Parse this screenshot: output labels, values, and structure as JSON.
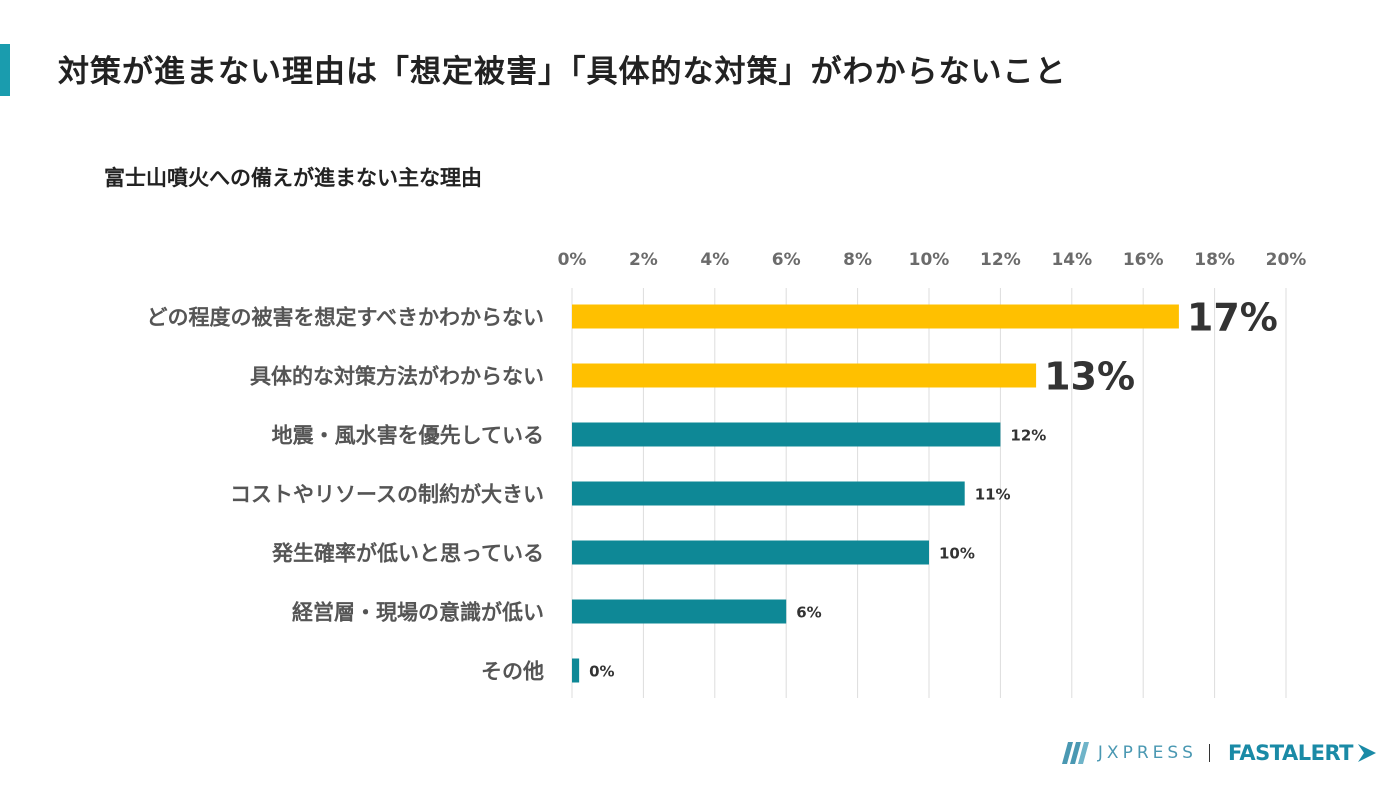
{
  "slide": {
    "title": "対策が進まない理由は「想定被害」「具体的な対策」がわからないこと",
    "accent_color": "#1a9cae"
  },
  "chart_data": {
    "type": "bar",
    "orientation": "horizontal",
    "title": "富士山噴火への備えが進まない主な理由",
    "categories": [
      "どの程度の被害を想定すべきかわからない",
      "具体的な対策方法がわからない",
      "地震・風水害を優先している",
      "コストやリソースの制約が大きい",
      "発生確率が低いと思っている",
      "経営層・現場の意識が低い",
      "その他"
    ],
    "values": [
      17,
      13,
      12,
      11,
      10,
      6,
      0.2
    ],
    "value_labels": [
      "17%",
      "13%",
      "12%",
      "11%",
      "10%",
      "6%",
      "0%"
    ],
    "highlight": [
      true,
      true,
      false,
      false,
      false,
      false,
      false
    ],
    "highlight_color": "#ffc000",
    "bar_color": "#0e8896",
    "xlim": [
      0,
      20
    ],
    "xticks": [
      "0%",
      "2%",
      "4%",
      "6%",
      "8%",
      "10%",
      "12%",
      "14%",
      "16%",
      "18%",
      "20%"
    ],
    "x_axis_position": "top",
    "grid": true,
    "legend": "none"
  },
  "footer": {
    "brand_left": "JXPRESS",
    "brand_right": "FASTALERT",
    "brand_left_icon": "jx-stripes-icon",
    "brand_right_icon": "fastalert-arrow-icon",
    "brand_color": "#1a8aa6"
  }
}
